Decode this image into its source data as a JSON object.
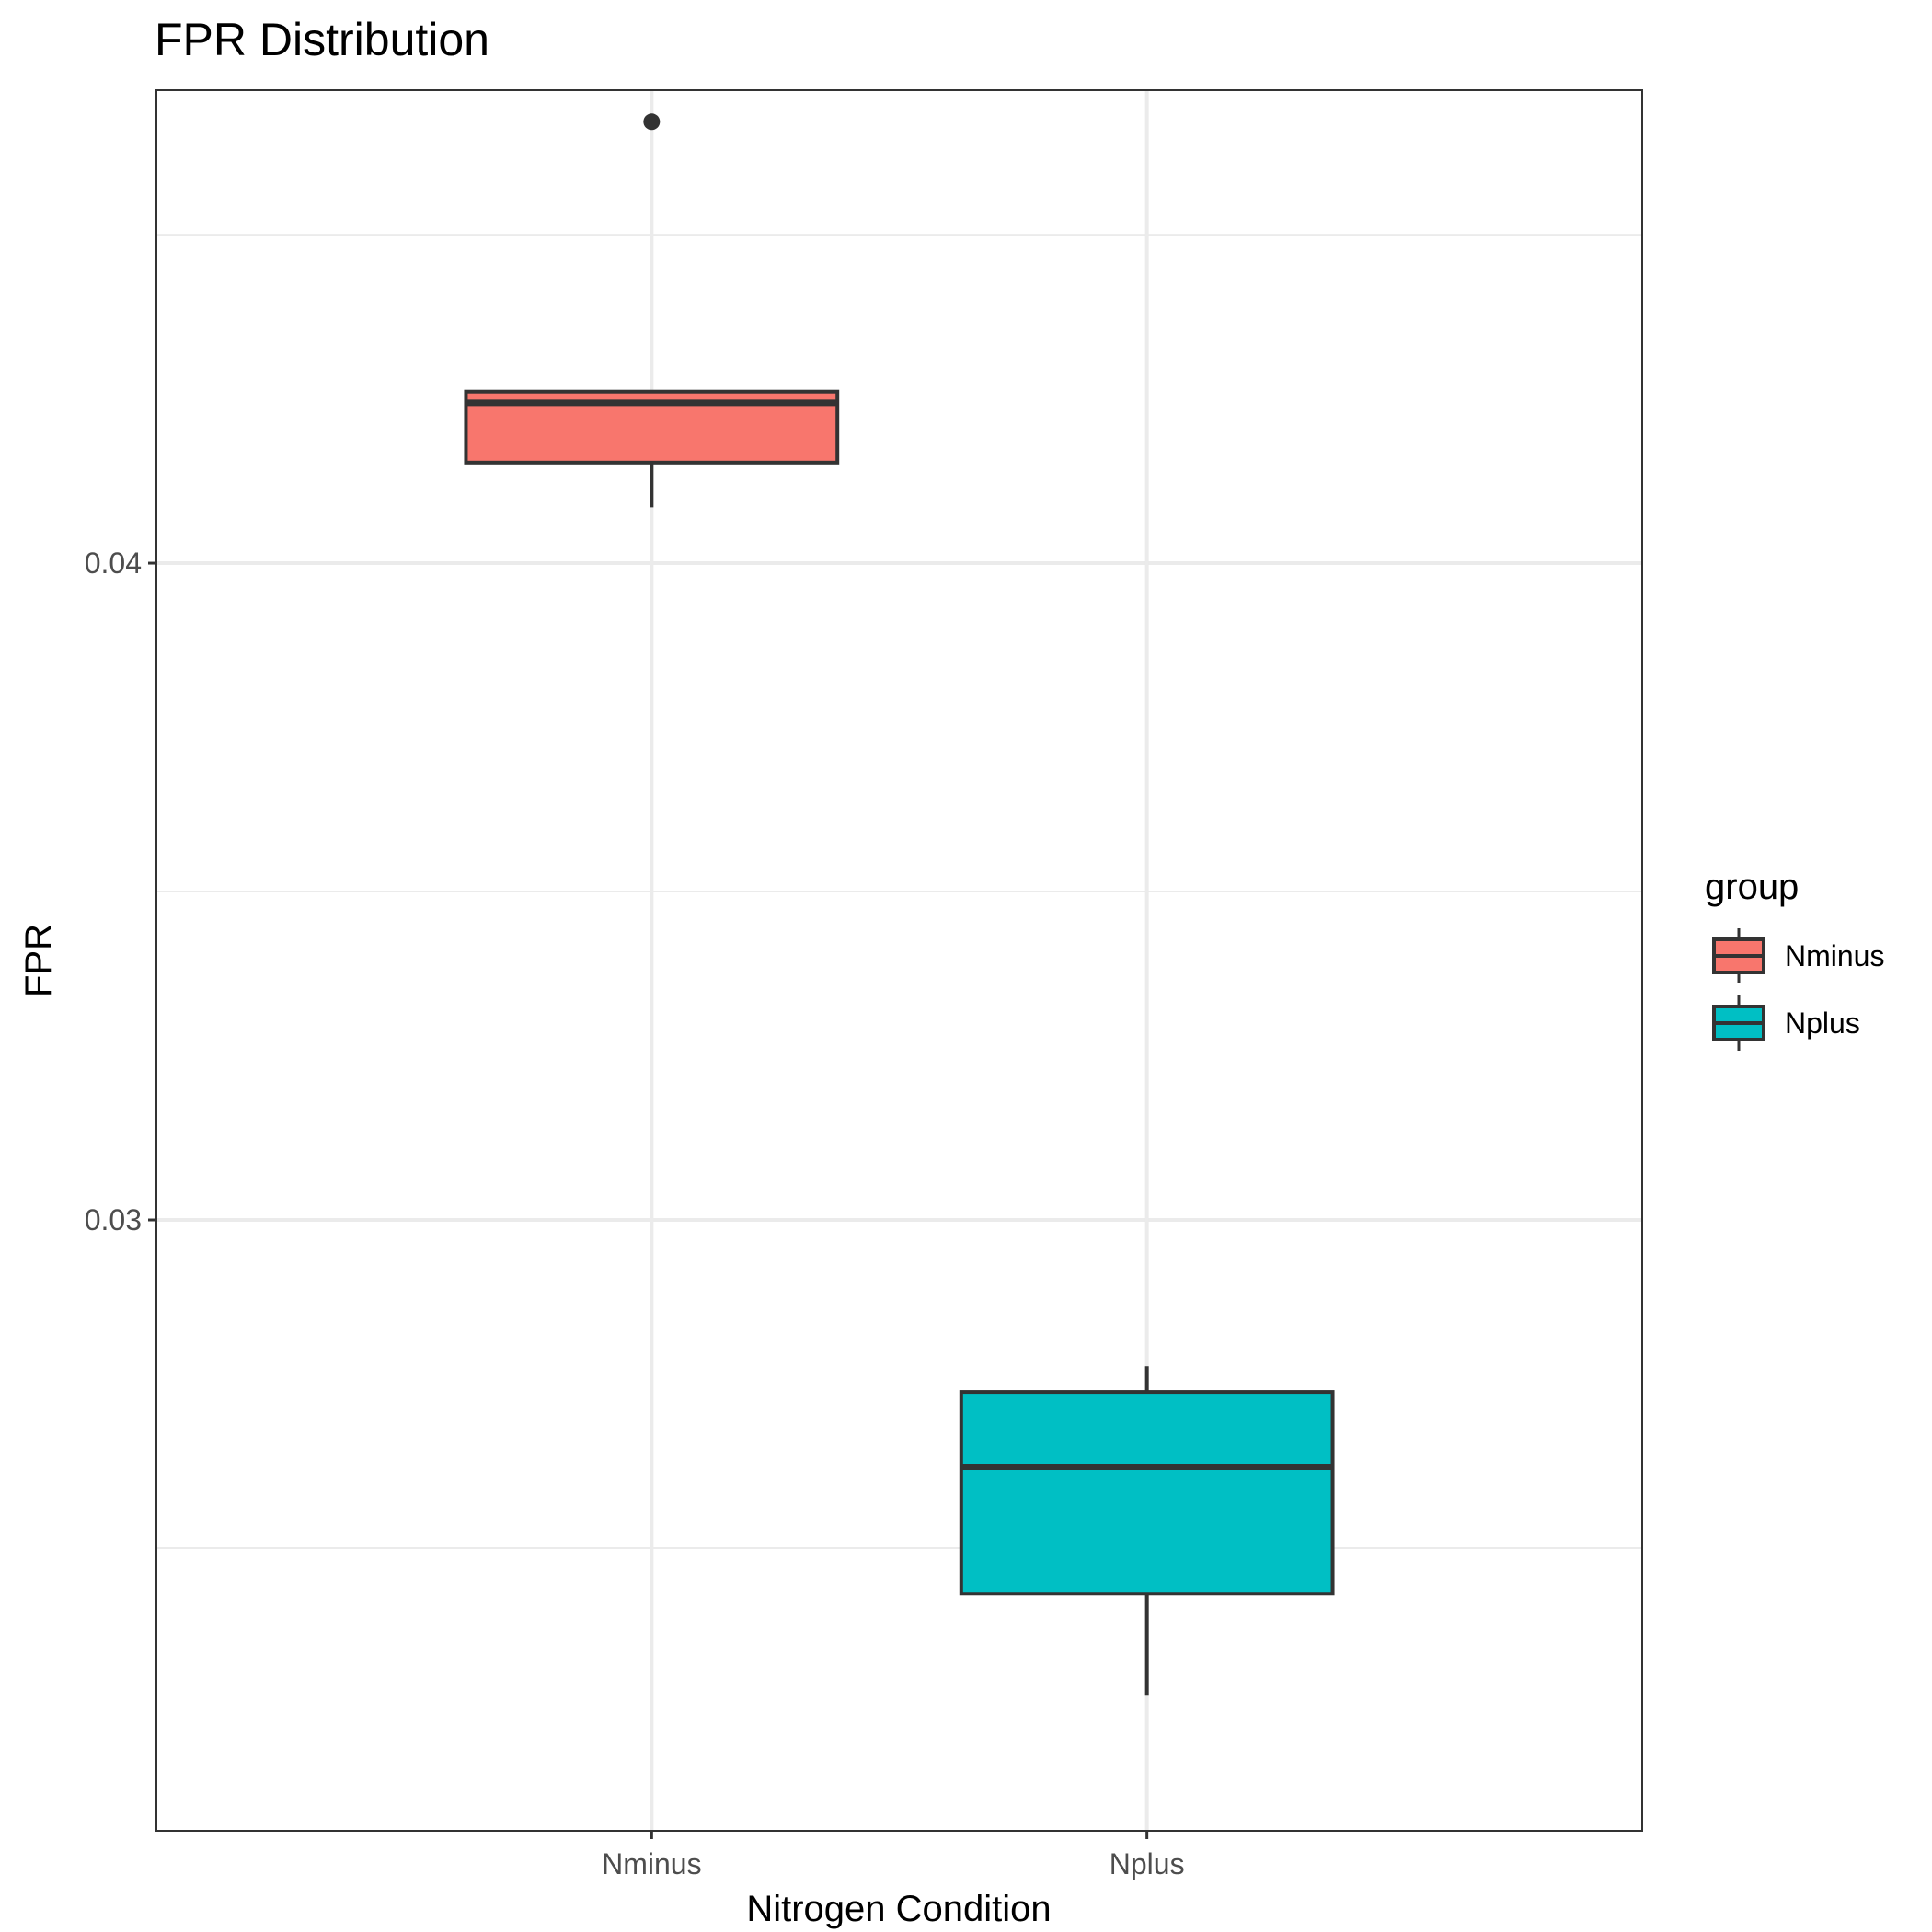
{
  "chart_data": {
    "type": "box",
    "title": "FPR Distribution",
    "xlabel": "Nitrogen Condition",
    "ylabel": "FPR",
    "categories": [
      "Nminus",
      "Nplus"
    ],
    "ylim": [
      0.0207,
      0.0472
    ],
    "y_ticks": [
      {
        "value": 0.03,
        "label": "0.03"
      },
      {
        "value": 0.04,
        "label": "0.04"
      }
    ],
    "y_minor_ticks": [
      0.025,
      0.035,
      0.045
    ],
    "grid": true,
    "boxes": [
      {
        "group": "Nminus",
        "color": "#F8766D",
        "whisker_low": 0.04085,
        "q1": 0.04153,
        "median": 0.04244,
        "q3": 0.04261,
        "whisker_high": 0.04261,
        "outliers": [
          0.04672
        ]
      },
      {
        "group": "Nplus",
        "color": "#00BFC4",
        "whisker_low": 0.02277,
        "q1": 0.02431,
        "median": 0.02624,
        "q3": 0.02738,
        "whisker_high": 0.02777,
        "outliers": []
      }
    ],
    "legend": {
      "title": "group",
      "position": "right",
      "entries": [
        {
          "label": "Nminus",
          "color": "#F8766D"
        },
        {
          "label": "Nplus",
          "color": "#00BFC4"
        }
      ]
    }
  }
}
